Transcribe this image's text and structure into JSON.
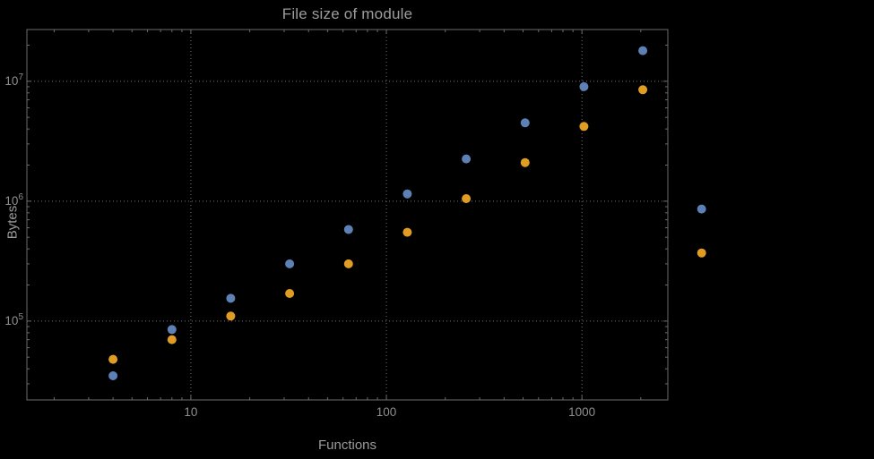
{
  "page": {
    "background": "#000000"
  },
  "chart_data": {
    "type": "scatter",
    "title": "File size of module",
    "xlabel": "Functions",
    "ylabel": "Bytes",
    "xscale": "log",
    "yscale": "log",
    "xlim": [
      1.45,
      2750
    ],
    "ylim": [
      22000,
      27000000
    ],
    "grid": "major-dotted",
    "legend": "none",
    "x_ticks": [
      {
        "value": 10,
        "label": "10"
      },
      {
        "value": 100,
        "label": "100"
      },
      {
        "value": 1000,
        "label": "1000"
      }
    ],
    "y_ticks": [
      {
        "value": 100000,
        "base": "10",
        "exp": "5"
      },
      {
        "value": 1000000,
        "base": "10",
        "exp": "6"
      },
      {
        "value": 10000000,
        "base": "10",
        "exp": "7"
      }
    ],
    "x": [
      4,
      8,
      16,
      32,
      64,
      128,
      256,
      512,
      1024,
      2048,
      4096
    ],
    "series": [
      {
        "name": "series-blue",
        "color": "#5e81b5",
        "values": [
          35000,
          85000,
          155000,
          300000,
          580000,
          1150000,
          2250000,
          4500000,
          9000000,
          18000000,
          860000
        ]
      },
      {
        "name": "series-orange",
        "color": "#e19c24",
        "values": [
          48000,
          70000,
          110000,
          170000,
          300000,
          550000,
          1050000,
          2100000,
          4200000,
          8500000,
          370000
        ]
      }
    ],
    "colors": {
      "frame": "#6c6c6c",
      "grid": "#757575",
      "labels": "#9c9c9a",
      "tick_labels": "#8f8f8d"
    }
  }
}
